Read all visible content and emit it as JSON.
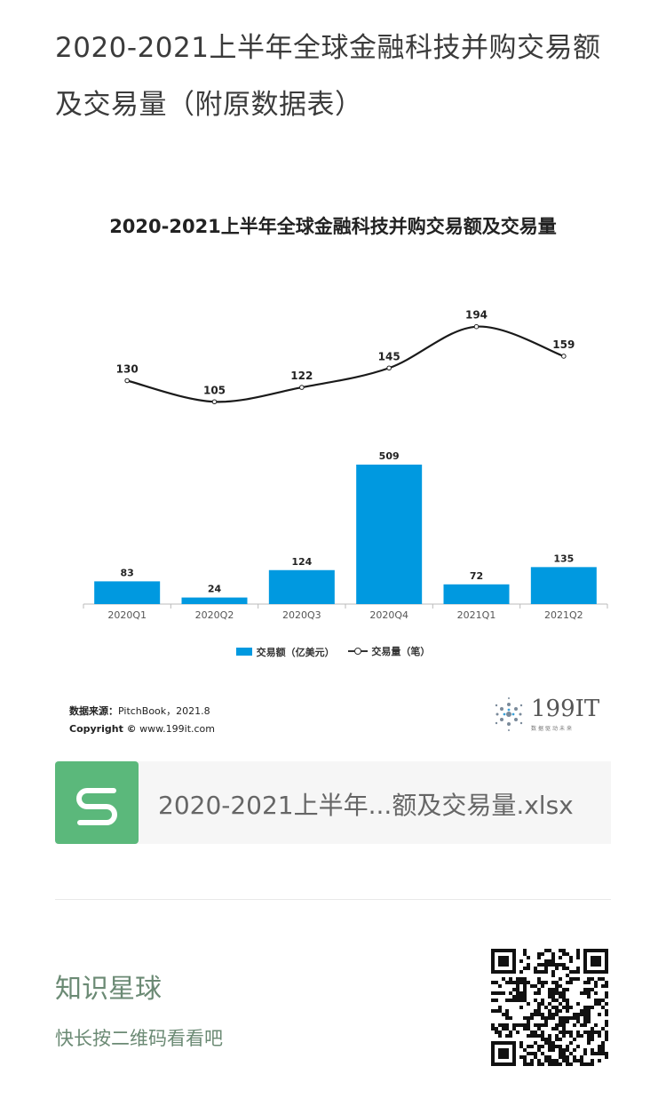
{
  "page": {
    "title": "2020-2021上半年全球金融科技并购交易额及交易量（附原数据表）"
  },
  "chart_data": {
    "type": "bar+line",
    "title": "2020-2021上半年全球金融科技并购交易额及交易量",
    "categories": [
      "2020Q1",
      "2020Q2",
      "2020Q3",
      "2020Q4",
      "2021Q1",
      "2021Q2"
    ],
    "series": [
      {
        "name": "交易额（亿美元）",
        "type": "bar",
        "values": [
          83,
          24,
          124,
          509,
          72,
          135
        ],
        "color": "#0099e0"
      },
      {
        "name": "交易量（笔）",
        "type": "line",
        "values": [
          130,
          105,
          122,
          145,
          194,
          159
        ],
        "color": "#1a1a1a"
      }
    ],
    "legend": [
      "交易额（亿美元）",
      "交易量（笔）"
    ],
    "legend_position": "bottom",
    "grid": false
  },
  "source": {
    "label": "数据来源：",
    "text": "PitchBook，2021.8",
    "copyright_label": "Copyright ©",
    "copyright_text": "www.199it.com"
  },
  "logo": {
    "text": "199IT",
    "subtext": "数据驱动未来"
  },
  "file_card": {
    "icon_name": "spreadsheet-s-icon",
    "filename": "2020-2021上半年...额及交易量.xlsx"
  },
  "footer": {
    "title": "知识星球",
    "subtitle": "快长按二维码看看吧",
    "qr_icon": "qr-code-icon"
  }
}
